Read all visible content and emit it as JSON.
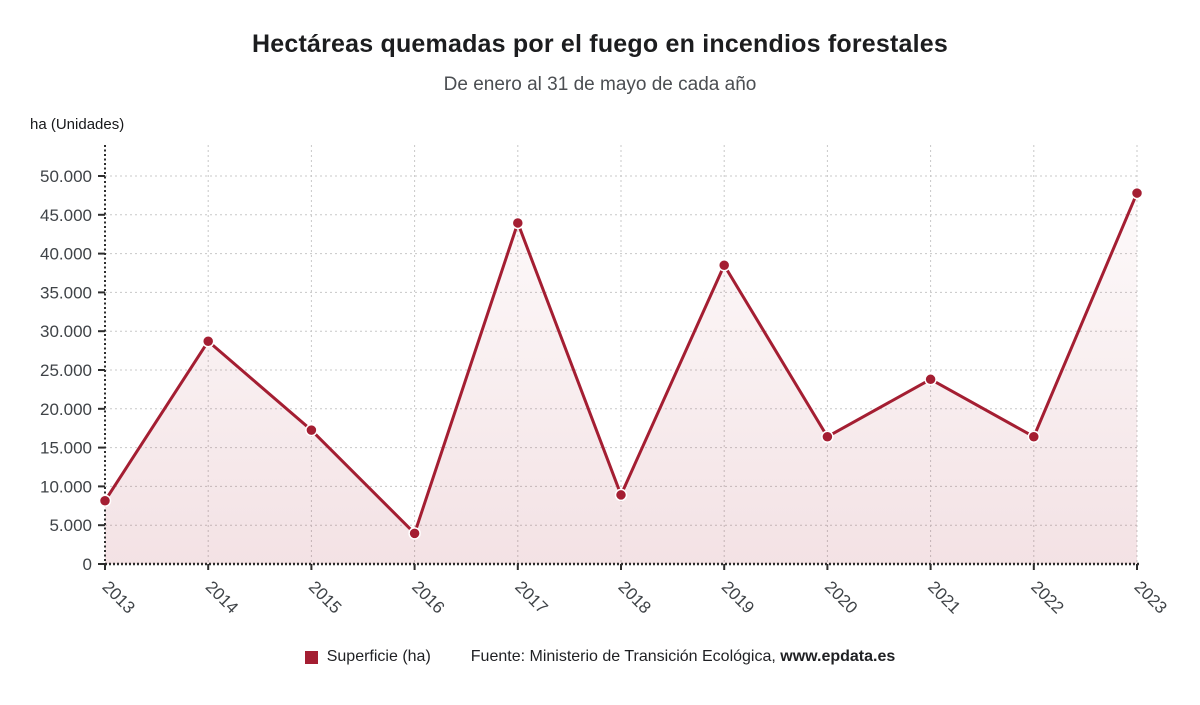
{
  "header": {
    "title": "Hectáreas quemadas por el fuego en incendios forestales",
    "subtitle": "De enero al 31 de mayo de cada año"
  },
  "axis_unit_label": "ha (Unidades)",
  "legend": {
    "label": "Superficie (ha)",
    "color": "#a41e32"
  },
  "source": {
    "prefix": "Fuente: Ministerio de Transición Ecológica, ",
    "bold_text": "www.epdata.es"
  },
  "colors": {
    "series": "#a41e32",
    "marker_outline": "#ffffff",
    "grid": "#c8c8c8",
    "axis": "#2d2d2d",
    "tick_label": "#3f4347",
    "area_fill_top_opacity": 0.02,
    "area_fill_bottom_opacity": 0.13
  },
  "chart_data": {
    "type": "area",
    "title": "Hectáreas quemadas por el fuego en incendios forestales",
    "subtitle": "De enero al 31 de mayo de cada año",
    "ylabel": "ha (Unidades)",
    "xlabel": "",
    "x": [
      "2013",
      "2014",
      "2015",
      "2016",
      "2017",
      "2018",
      "2019",
      "2020",
      "2021",
      "2022",
      "2023"
    ],
    "series": [
      {
        "name": "Superficie (ha)",
        "color": "#a41e32",
        "values": [
          8150,
          28700,
          17250,
          3950,
          43950,
          8900,
          38500,
          16400,
          23800,
          16400,
          47800
        ]
      }
    ],
    "ylim": [
      0,
      54000
    ],
    "yticks": [
      0,
      5000,
      10000,
      15000,
      20000,
      25000,
      30000,
      35000,
      40000,
      45000,
      50000
    ],
    "ytick_labels": [
      "0",
      "5.000",
      "10.000",
      "15.000",
      "20.000",
      "25.000",
      "30.000",
      "35.000",
      "40.000",
      "45.000",
      "50.000"
    ],
    "grid": true,
    "grid_style": "dashed",
    "legend_position": "bottom",
    "x_tick_label_rotation_deg": 45
  }
}
